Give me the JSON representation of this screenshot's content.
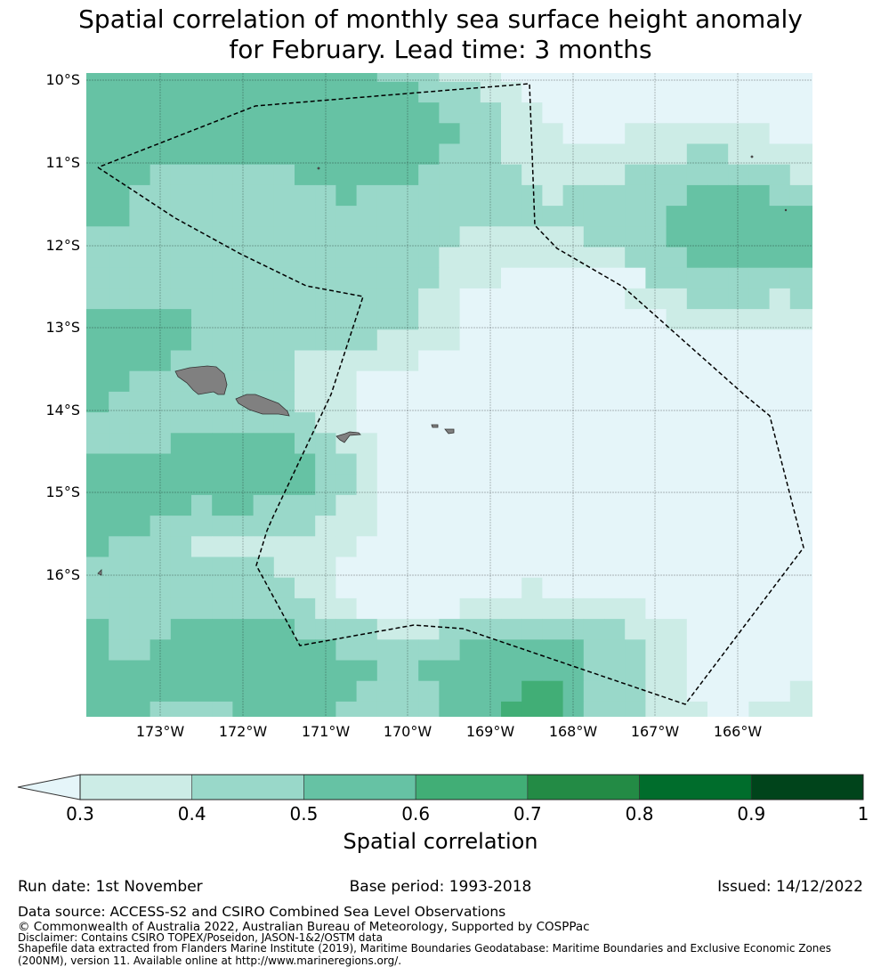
{
  "title": {
    "line1": "Spatial correlation of monthly sea surface height anomaly",
    "line2": "for February. Lead time: 3 months"
  },
  "axes": {
    "lat_labels": [
      "10°S",
      "11°S",
      "12°S",
      "13°S",
      "14°S",
      "15°S",
      "16°S"
    ],
    "lon_labels": [
      "173°W",
      "172°W",
      "171°W",
      "170°W",
      "169°W",
      "168°W",
      "167°W",
      "166°W"
    ]
  },
  "colorbar": {
    "label": "Spatial correlation",
    "ticks": [
      "0.3",
      "0.4",
      "0.5",
      "0.6",
      "0.7",
      "0.8",
      "0.9",
      "1"
    ],
    "under_color": "#e5f5f9",
    "colors": [
      "#ccece6",
      "#99d8c9",
      "#66c2a4",
      "#41ae76",
      "#238b45",
      "#006d2c",
      "#00441b"
    ]
  },
  "chart_data": {
    "type": "heatmap",
    "title": "Spatial correlation of monthly sea surface height anomaly for February. Lead time: 3 months",
    "value_label": "Spatial correlation",
    "levels": [
      "<0.3",
      "0.3-0.4",
      "0.4-0.5",
      "0.5-0.6",
      "0.6-0.7",
      "0.7-0.8",
      "0.8-0.9",
      "0.9-1"
    ],
    "cell_resolution_deg": 0.25,
    "lon_range": [
      "173.9°W",
      "165.1°W"
    ],
    "lat_range": [
      "9.9°S",
      "17.7°S"
    ],
    "rows_north_to_south_rle": [
      [
        [
          3,
          14
        ],
        [
          2,
          3
        ],
        [
          1,
          3
        ],
        [
          0,
          15
        ]
      ],
      [
        [
          3,
          16
        ],
        [
          2,
          3
        ],
        [
          1,
          2
        ],
        [
          0,
          14
        ]
      ],
      [
        [
          3,
          17
        ],
        [
          2,
          3
        ],
        [
          1,
          2
        ],
        [
          0,
          13
        ]
      ],
      [
        [
          3,
          18
        ],
        [
          2,
          2
        ],
        [
          1,
          3
        ],
        [
          0,
          3
        ],
        [
          1,
          7
        ],
        [
          0,
          2
        ]
      ],
      [
        [
          3,
          17
        ],
        [
          2,
          3
        ],
        [
          1,
          9
        ],
        [
          2,
          2
        ],
        [
          1,
          4
        ]
      ],
      [
        [
          3,
          3
        ],
        [
          2,
          7
        ],
        [
          3,
          6
        ],
        [
          2,
          5
        ],
        [
          1,
          5
        ],
        [
          2,
          8
        ],
        [
          1,
          1
        ]
      ],
      [
        [
          3,
          2
        ],
        [
          2,
          10
        ],
        [
          3,
          1
        ],
        [
          2,
          9
        ],
        [
          1,
          1
        ],
        [
          2,
          6
        ],
        [
          3,
          4
        ],
        [
          2,
          2
        ]
      ],
      [
        [
          3,
          2
        ],
        [
          2,
          26
        ],
        [
          3,
          7
        ]
      ],
      [
        [
          2,
          18
        ],
        [
          1,
          6
        ],
        [
          2,
          4
        ],
        [
          3,
          7
        ]
      ],
      [
        [
          2,
          17
        ],
        [
          1,
          9
        ],
        [
          2,
          3
        ],
        [
          3,
          6
        ]
      ],
      [
        [
          2,
          17
        ],
        [
          1,
          3
        ],
        [
          0,
          7
        ],
        [
          2,
          8
        ]
      ],
      [
        [
          2,
          16
        ],
        [
          1,
          2
        ],
        [
          0,
          8
        ],
        [
          1,
          3
        ],
        [
          2,
          4
        ],
        [
          1,
          1
        ],
        [
          2,
          1
        ]
      ],
      [
        [
          3,
          5
        ],
        [
          2,
          11
        ],
        [
          1,
          2
        ],
        [
          0,
          10
        ],
        [
          1,
          7
        ]
      ],
      [
        [
          3,
          5
        ],
        [
          2,
          9
        ],
        [
          1,
          4
        ],
        [
          0,
          17
        ]
      ],
      [
        [
          3,
          4
        ],
        [
          2,
          6
        ],
        [
          1,
          6
        ],
        [
          0,
          19
        ]
      ],
      [
        [
          3,
          2
        ],
        [
          2,
          8
        ],
        [
          1,
          3
        ],
        [
          0,
          22
        ]
      ],
      [
        [
          3,
          1
        ],
        [
          2,
          9
        ],
        [
          1,
          3
        ],
        [
          0,
          22
        ]
      ],
      [
        [
          2,
          11
        ],
        [
          1,
          2
        ],
        [
          0,
          22
        ]
      ],
      [
        [
          2,
          4
        ],
        [
          3,
          6
        ],
        [
          2,
          2
        ],
        [
          1,
          2
        ],
        [
          0,
          21
        ]
      ],
      [
        [
          3,
          11
        ],
        [
          2,
          2
        ],
        [
          1,
          1
        ],
        [
          0,
          21
        ]
      ],
      [
        [
          3,
          11
        ],
        [
          2,
          2
        ],
        [
          1,
          1
        ],
        [
          0,
          21
        ]
      ],
      [
        [
          3,
          5
        ],
        [
          2,
          1
        ],
        [
          3,
          2
        ],
        [
          2,
          4
        ],
        [
          1,
          2
        ],
        [
          0,
          21
        ]
      ],
      [
        [
          3,
          3
        ],
        [
          2,
          8
        ],
        [
          1,
          3
        ],
        [
          0,
          21
        ]
      ],
      [
        [
          3,
          1
        ],
        [
          2,
          4
        ],
        [
          1,
          8
        ],
        [
          0,
          22
        ]
      ],
      [
        [
          2,
          9
        ],
        [
          1,
          3
        ],
        [
          0,
          23
        ]
      ],
      [
        [
          2,
          10
        ],
        [
          1,
          2
        ],
        [
          0,
          9
        ],
        [
          1,
          1
        ],
        [
          0,
          13
        ]
      ],
      [
        [
          2,
          11
        ],
        [
          1,
          2
        ],
        [
          0,
          5
        ],
        [
          1,
          9
        ],
        [
          0,
          8
        ]
      ],
      [
        [
          3,
          1
        ],
        [
          2,
          3
        ],
        [
          3,
          6
        ],
        [
          2,
          4
        ],
        [
          1,
          3
        ],
        [
          2,
          9
        ],
        [
          1,
          3
        ],
        [
          0,
          6
        ]
      ],
      [
        [
          3,
          1
        ],
        [
          2,
          2
        ],
        [
          3,
          9
        ],
        [
          2,
          6
        ],
        [
          3,
          6
        ],
        [
          2,
          3
        ],
        [
          1,
          2
        ],
        [
          0,
          6
        ]
      ],
      [
        [
          3,
          14
        ],
        [
          2,
          2
        ],
        [
          3,
          8
        ],
        [
          2,
          3
        ],
        [
          1,
          2
        ],
        [
          0,
          6
        ]
      ],
      [
        [
          3,
          13
        ],
        [
          2,
          4
        ],
        [
          3,
          4
        ],
        [
          4,
          2
        ],
        [
          3,
          1
        ],
        [
          2,
          3
        ],
        [
          1,
          2
        ],
        [
          0,
          5
        ],
        [
          1,
          1
        ]
      ],
      [
        [
          3,
          3
        ],
        [
          2,
          4
        ],
        [
          3,
          5
        ],
        [
          2,
          5
        ],
        [
          3,
          3
        ],
        [
          4,
          3
        ],
        [
          3,
          1
        ],
        [
          2,
          3
        ],
        [
          1,
          3
        ],
        [
          0,
          2
        ],
        [
          1,
          3
        ]
      ]
    ]
  },
  "footer": {
    "run_date": "Run date: 1st November",
    "base_period": "Base period: 1993-2018",
    "issued": "Issued: 14/12/2022",
    "data_source": "Data source: ACCESS-S2 and CSIRO Combined Sea Level Observations",
    "copyright": "© Commonwealth of Australia 2022, Australian Bureau of Meteorology, Supported by COSPPac",
    "disclaimer": "Disclaimer: Contains CSIRO TOPEX/Poseidon, JASON-1&2/OSTM data",
    "shapefile_1": "Shapefile data extracted from Flanders Marine Institute (2019), Maritime Boundaries Geodatabase: Maritime Boundaries and Exclusive Economic Zones",
    "shapefile_2": "(200NM), version 11. Available online at http://www.marineregions.org/."
  }
}
